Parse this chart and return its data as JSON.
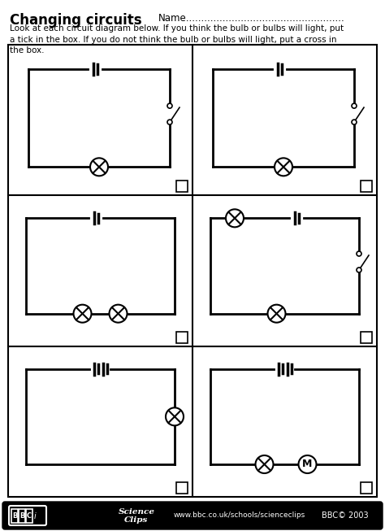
{
  "title": "Changing circuits",
  "name_line": "Name....................................................",
  "instruction": "Look at each circuit diagram below. If you think the bulb or bulbs will light, put\na tick in the box. If you do not think the bulb or bulbs will light, put a cross in\nthe box.",
  "footer_url": "www.bbc.co.uk/schools/scienceclips",
  "footer_copy": "BBC© 2003",
  "bg_color": "#ffffff"
}
